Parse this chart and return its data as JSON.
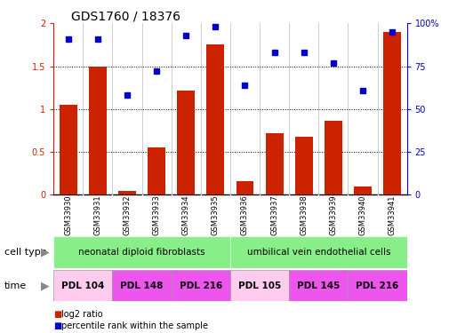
{
  "title": "GDS1760 / 18376",
  "samples": [
    "GSM33930",
    "GSM33931",
    "GSM33932",
    "GSM33933",
    "GSM33934",
    "GSM33935",
    "GSM33936",
    "GSM33937",
    "GSM33938",
    "GSM33939",
    "GSM33940",
    "GSM33941"
  ],
  "log2_ratio": [
    1.05,
    1.5,
    0.05,
    0.55,
    1.22,
    1.75,
    0.16,
    0.72,
    0.68,
    0.86,
    0.1,
    1.9
  ],
  "percentile_rank": [
    91,
    91,
    58,
    72,
    93,
    98,
    64,
    83,
    83,
    77,
    61,
    95
  ],
  "bar_color": "#cc2200",
  "dot_color": "#0000cc",
  "ylim_left": [
    0,
    2
  ],
  "ylim_right": [
    0,
    100
  ],
  "yticks_left": [
    0,
    0.5,
    1.0,
    1.5,
    2.0
  ],
  "yticks_right": [
    0,
    25,
    50,
    75,
    100
  ],
  "ytick_labels_right": [
    "0",
    "25",
    "50",
    "75",
    "100%"
  ],
  "cell_type_groups": [
    {
      "label": "neonatal diploid fibroblasts",
      "start": 0,
      "end": 6,
      "color": "#88ee88"
    },
    {
      "label": "umbilical vein endothelial cells",
      "start": 6,
      "end": 12,
      "color": "#88ee88"
    }
  ],
  "time_groups": [
    {
      "label": "PDL 104",
      "start": 0,
      "end": 2,
      "color": "#ffccee"
    },
    {
      "label": "PDL 148",
      "start": 2,
      "end": 4,
      "color": "#ee55ee"
    },
    {
      "label": "PDL 216",
      "start": 4,
      "end": 6,
      "color": "#ee55ee"
    },
    {
      "label": "PDL 105",
      "start": 6,
      "end": 8,
      "color": "#ffccee"
    },
    {
      "label": "PDL 145",
      "start": 8,
      "end": 10,
      "color": "#ee55ee"
    },
    {
      "label": "PDL 216",
      "start": 10,
      "end": 12,
      "color": "#ee55ee"
    }
  ],
  "legend_items": [
    {
      "label": "log2 ratio",
      "color": "#cc2200"
    },
    {
      "label": "percentile rank within the sample",
      "color": "#0000cc"
    }
  ],
  "cell_type_label": "cell type",
  "time_label": "time",
  "background_color": "#ffffff",
  "tick_label_color_left": "#cc2200",
  "tick_label_color_right": "#0000cc",
  "sample_bg_color": "#cccccc",
  "arrow_color": "#888888"
}
